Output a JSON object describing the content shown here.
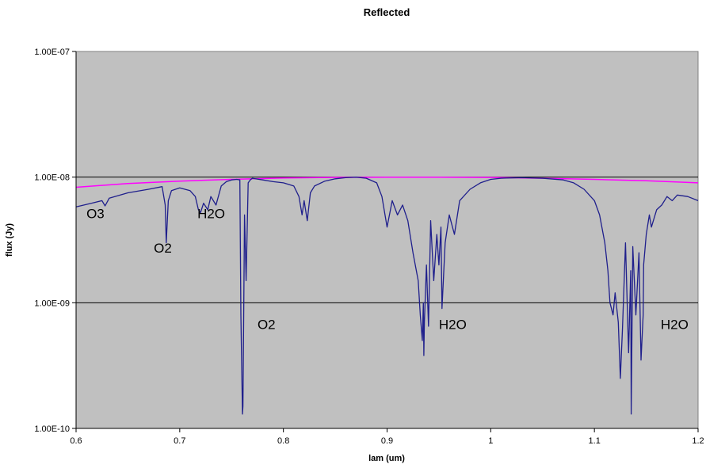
{
  "chart_data": {
    "type": "line",
    "title": "Reflected",
    "xlabel": "lam (um)",
    "ylabel": "flux (Jy)",
    "xlim": [
      0.6,
      1.2
    ],
    "ylim": [
      1e-10,
      1e-07
    ],
    "y_scale": "log",
    "x_ticks": [
      0.6,
      0.7,
      0.8,
      0.9,
      1.0,
      1.1,
      1.2
    ],
    "x_tick_labels": [
      "0.6",
      "0.7",
      "0.8",
      "0.9",
      "1",
      "1.1",
      "1.2"
    ],
    "y_ticks": [
      1e-10,
      1e-09,
      1e-08,
      1e-07
    ],
    "y_tick_labels": [
      "1.00E-10",
      "1.00E-09",
      "1.00E-08",
      "1.00E-07"
    ],
    "plot_background": "#c0c0c0",
    "gridlines": "horizontal at decades",
    "legend": "none",
    "series": [
      {
        "color": "#ff00ff",
        "x": [
          0.6,
          0.65,
          0.7,
          0.75,
          0.8,
          0.85,
          0.9,
          0.95,
          1.0,
          1.05,
          1.1,
          1.15,
          1.2
        ],
        "y": [
          8.3e-09,
          8.9e-09,
          9.3e-09,
          9.6e-09,
          9.85e-09,
          9.95e-09,
          1e-08,
          1e-08,
          9.95e-09,
          9.8e-09,
          9.6e-09,
          9.35e-09,
          9e-09
        ]
      },
      {
        "color": "#1f1f8c",
        "x": [
          0.6,
          0.615,
          0.625,
          0.628,
          0.632,
          0.65,
          0.67,
          0.683,
          0.686,
          0.687,
          0.689,
          0.692,
          0.7,
          0.71,
          0.715,
          0.718,
          0.72,
          0.723,
          0.727,
          0.73,
          0.735,
          0.74,
          0.745,
          0.75,
          0.755,
          0.758,
          0.759,
          0.7605,
          0.761,
          0.7625,
          0.764,
          0.766,
          0.768,
          0.77,
          0.78,
          0.79,
          0.8,
          0.81,
          0.815,
          0.818,
          0.82,
          0.823,
          0.826,
          0.83,
          0.84,
          0.85,
          0.86,
          0.87,
          0.88,
          0.89,
          0.895,
          0.9,
          0.905,
          0.91,
          0.915,
          0.92,
          0.925,
          0.93,
          0.932,
          0.934,
          0.935,
          0.9355,
          0.936,
          0.938,
          0.94,
          0.942,
          0.945,
          0.948,
          0.95,
          0.952,
          0.953,
          0.956,
          0.96,
          0.965,
          0.97,
          0.98,
          0.99,
          1.0,
          1.01,
          1.03,
          1.05,
          1.07,
          1.08,
          1.09,
          1.1,
          1.105,
          1.11,
          1.113,
          1.115,
          1.118,
          1.12,
          1.123,
          1.125,
          1.127,
          1.13,
          1.133,
          1.135,
          1.1355,
          1.137,
          1.14,
          1.143,
          1.145,
          1.147,
          1.1475,
          1.15,
          1.153,
          1.155,
          1.16,
          1.165,
          1.17,
          1.175,
          1.18,
          1.19,
          1.2
        ],
        "y": [
          5.8e-09,
          6.2e-09,
          6.5e-09,
          5.9e-09,
          6.8e-09,
          7.5e-09,
          8e-09,
          8.4e-09,
          6e-09,
          3e-09,
          6.5e-09,
          7.8e-09,
          8.2e-09,
          7.8e-09,
          7e-09,
          5.5e-09,
          5.2e-09,
          6.2e-09,
          5.5e-09,
          7e-09,
          6e-09,
          8.5e-09,
          9.2e-09,
          9.5e-09,
          9.6e-09,
          9.5e-09,
          8e-10,
          1.3e-10,
          1.5e-10,
          5e-09,
          1.5e-09,
          9e-09,
          9.5e-09,
          9.8e-09,
          9.5e-09,
          9.2e-09,
          9e-09,
          8.5e-09,
          7e-09,
          5e-09,
          6.5e-09,
          4.5e-09,
          7.5e-09,
          8.5e-09,
          9.3e-09,
          9.7e-09,
          9.9e-09,
          1e-08,
          9.8e-09,
          9e-09,
          7e-09,
          4e-09,
          6.5e-09,
          5e-09,
          6e-09,
          4.5e-09,
          2.5e-09,
          1.5e-09,
          8e-10,
          5e-10,
          1e-09,
          3.8e-10,
          7e-10,
          2e-09,
          6.5e-10,
          4.5e-09,
          1.5e-09,
          3.5e-09,
          2e-09,
          4e-09,
          9e-10,
          3e-09,
          5e-09,
          3.5e-09,
          6.5e-09,
          8e-09,
          9e-09,
          9.6e-09,
          9.8e-09,
          9.9e-09,
          9.8e-09,
          9.5e-09,
          9e-09,
          8e-09,
          6.5e-09,
          5e-09,
          3e-09,
          1.8e-09,
          1e-09,
          8e-10,
          1.2e-09,
          7e-10,
          2.5e-10,
          6e-10,
          3e-09,
          4e-10,
          1.8e-09,
          1.3e-10,
          2.8e-09,
          8e-10,
          2.5e-09,
          3.5e-10,
          8e-10,
          2e-09,
          3.5e-09,
          5e-09,
          4e-09,
          5.5e-09,
          6e-09,
          7e-09,
          6.5e-09,
          7.2e-09,
          7e-09,
          6.5e-09
        ]
      }
    ],
    "annotations": [
      {
        "text": "O3",
        "x": 0.61,
        "y": 4.7e-09
      },
      {
        "text": "O2",
        "x": 0.675,
        "y": 2.5e-09
      },
      {
        "text": "H2O",
        "x": 0.717,
        "y": 4.7e-09
      },
      {
        "text": "O2",
        "x": 0.775,
        "y": 6.2e-10
      },
      {
        "text": "H2O",
        "x": 0.95,
        "y": 6.2e-10
      },
      {
        "text": "H2O",
        "x": 1.164,
        "y": 6.2e-10
      }
    ]
  }
}
